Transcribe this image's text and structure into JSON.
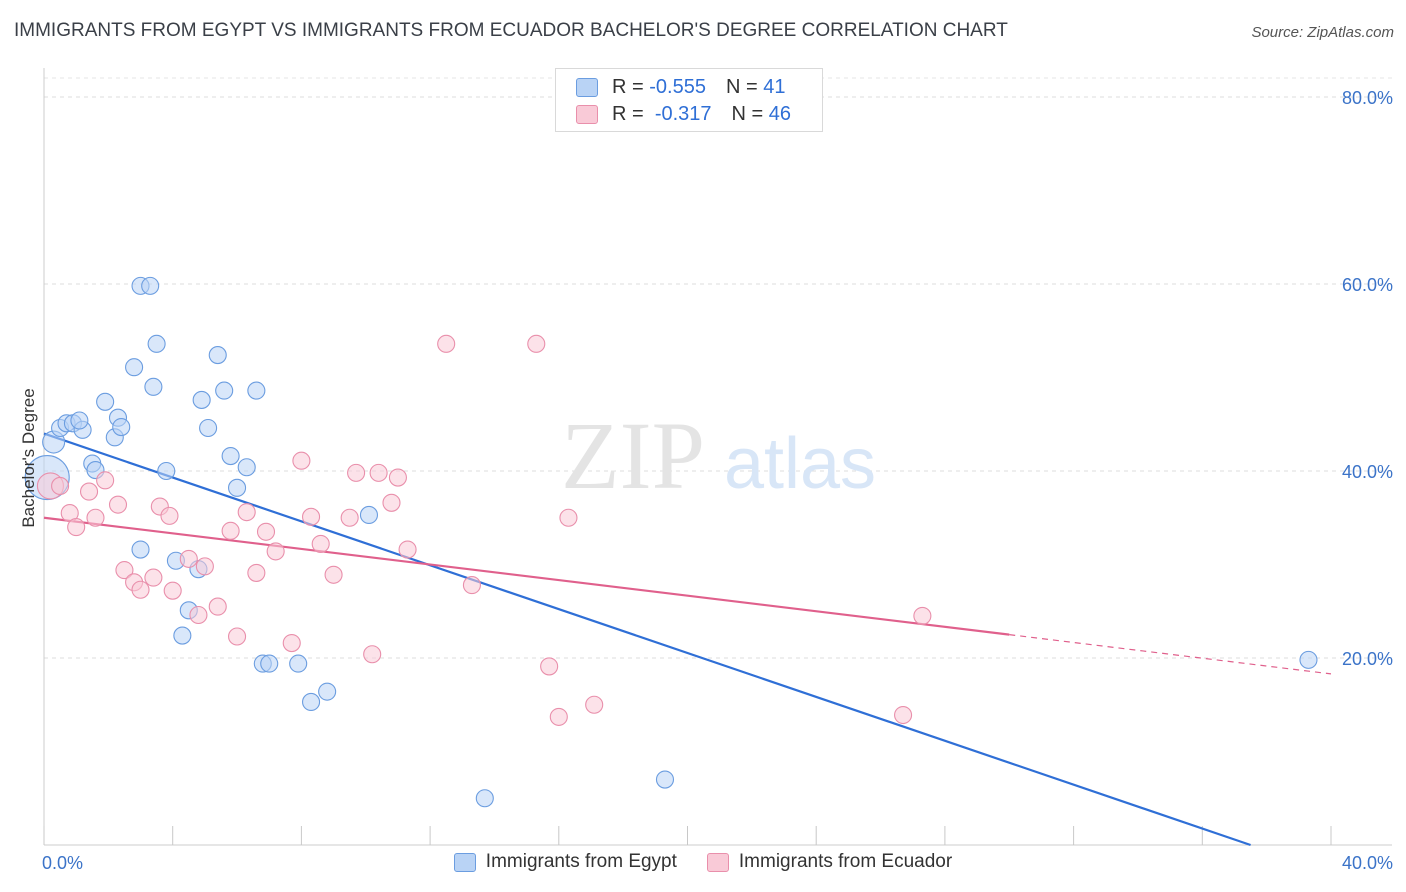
{
  "title": "IMMIGRANTS FROM EGYPT VS IMMIGRANTS FROM ECUADOR BACHELOR'S DEGREE CORRELATION CHART",
  "source": "Source: ZipAtlas.com",
  "watermark": {
    "zip": "ZIP",
    "atlas": "atlas"
  },
  "colors": {
    "egypt_fill": "#b9d3f5",
    "egypt_stroke": "#6b9de0",
    "egypt_line": "#2f6fd6",
    "ecuador_fill": "#f9cad7",
    "ecuador_stroke": "#e98fab",
    "ecuador_line": "#e0608c",
    "axis_text": "#3b73c8"
  },
  "stats": {
    "egypt": {
      "r_label": "R =",
      "r_value": "-0.555",
      "n_label": "N =",
      "n_value": "41"
    },
    "ecuador": {
      "r_label": "R =",
      "r_value": "-0.317",
      "n_label": "N =",
      "n_value": "46"
    }
  },
  "chart_data": {
    "type": "scatter",
    "ylabel": "Bachelor's Degree",
    "xlim": [
      0,
      40
    ],
    "ylim": [
      0,
      80
    ],
    "x_tick_labels": [
      {
        "value": 0,
        "label": "0.0%"
      },
      {
        "value": 40,
        "label": "40.0%"
      }
    ],
    "y_tick_labels": [
      {
        "value": 20,
        "label": "20.0%"
      },
      {
        "value": 40,
        "label": "40.0%"
      },
      {
        "value": 60,
        "label": "60.0%"
      },
      {
        "value": 80,
        "label": "80.0%"
      }
    ],
    "grid": true,
    "legend": "bottom-center",
    "series": [
      {
        "name": "Immigrants from Egypt",
        "color": "#6b9de0",
        "points": [
          [
            0.1,
            39.3
          ],
          [
            0.3,
            43.1
          ],
          [
            0.5,
            44.6
          ],
          [
            0.7,
            45.1
          ],
          [
            0.9,
            45.1
          ],
          [
            1.2,
            44.4
          ],
          [
            1.5,
            40.8
          ],
          [
            1.6,
            40.1
          ],
          [
            1.9,
            47.4
          ],
          [
            2.2,
            43.6
          ],
          [
            2.3,
            45.7
          ],
          [
            2.4,
            44.7
          ],
          [
            2.8,
            51.1
          ],
          [
            3.0,
            59.8
          ],
          [
            3.3,
            59.8
          ],
          [
            3.4,
            49.0
          ],
          [
            3.5,
            53.6
          ],
          [
            3.8,
            40.0
          ],
          [
            3.0,
            31.6
          ],
          [
            4.1,
            30.4
          ],
          [
            4.3,
            22.4
          ],
          [
            4.5,
            25.1
          ],
          [
            4.8,
            29.5
          ],
          [
            4.9,
            47.6
          ],
          [
            5.1,
            44.6
          ],
          [
            5.4,
            52.4
          ],
          [
            5.6,
            48.6
          ],
          [
            5.8,
            41.6
          ],
          [
            6.0,
            38.2
          ],
          [
            6.3,
            40.4
          ],
          [
            6.6,
            48.6
          ],
          [
            6.8,
            19.4
          ],
          [
            7.0,
            19.4
          ],
          [
            7.9,
            19.4
          ],
          [
            8.3,
            15.3
          ],
          [
            8.8,
            16.4
          ],
          [
            10.1,
            35.3
          ],
          [
            13.7,
            5.0
          ],
          [
            19.3,
            7.0
          ],
          [
            39.3,
            19.8
          ],
          [
            1.1,
            45.4
          ]
        ]
      },
      {
        "name": "Immigrants from Ecuador",
        "color": "#e98fab",
        "points": [
          [
            0.2,
            38.4
          ],
          [
            0.5,
            38.4
          ],
          [
            0.8,
            35.5
          ],
          [
            1.0,
            34.0
          ],
          [
            1.4,
            37.8
          ],
          [
            1.6,
            35.0
          ],
          [
            1.9,
            39.0
          ],
          [
            2.3,
            36.4
          ],
          [
            2.5,
            29.4
          ],
          [
            2.8,
            28.1
          ],
          [
            3.0,
            27.3
          ],
          [
            3.4,
            28.6
          ],
          [
            3.6,
            36.2
          ],
          [
            3.9,
            35.2
          ],
          [
            4.0,
            27.2
          ],
          [
            4.5,
            30.6
          ],
          [
            4.8,
            24.6
          ],
          [
            5.0,
            29.8
          ],
          [
            5.4,
            25.5
          ],
          [
            5.8,
            33.6
          ],
          [
            6.0,
            22.3
          ],
          [
            6.3,
            35.6
          ],
          [
            6.6,
            29.1
          ],
          [
            6.9,
            33.5
          ],
          [
            7.2,
            31.4
          ],
          [
            7.7,
            21.6
          ],
          [
            8.0,
            41.1
          ],
          [
            8.3,
            35.1
          ],
          [
            8.6,
            32.2
          ],
          [
            9.0,
            28.9
          ],
          [
            9.5,
            35.0
          ],
          [
            9.7,
            39.8
          ],
          [
            10.2,
            20.4
          ],
          [
            10.4,
            39.8
          ],
          [
            10.8,
            36.6
          ],
          [
            11.0,
            39.3
          ],
          [
            11.3,
            31.6
          ],
          [
            12.5,
            53.6
          ],
          [
            13.3,
            27.8
          ],
          [
            15.3,
            53.6
          ],
          [
            15.7,
            19.1
          ],
          [
            16.0,
            13.7
          ],
          [
            16.3,
            35.0
          ],
          [
            17.1,
            15.0
          ],
          [
            26.7,
            13.9
          ],
          [
            27.3,
            24.5
          ]
        ]
      }
    ],
    "trend_lines": [
      {
        "series": "Immigrants from Egypt",
        "x": [
          0,
          37.5
        ],
        "y": [
          44.0,
          0.0
        ],
        "style": "solid",
        "color": "#2f6fd6"
      },
      {
        "series": "Immigrants from Ecuador",
        "x": [
          0,
          30.0
        ],
        "y": [
          35.0,
          22.5
        ],
        "style": "solid",
        "color": "#e0608c"
      },
      {
        "series": "Immigrants from Ecuador",
        "x": [
          30.0,
          40.0
        ],
        "y": [
          22.5,
          18.3
        ],
        "style": "dashed",
        "color": "#e0608c"
      }
    ]
  },
  "legend": {
    "egypt": "Immigrants from Egypt",
    "ecuador": "Immigrants from Ecuador"
  }
}
